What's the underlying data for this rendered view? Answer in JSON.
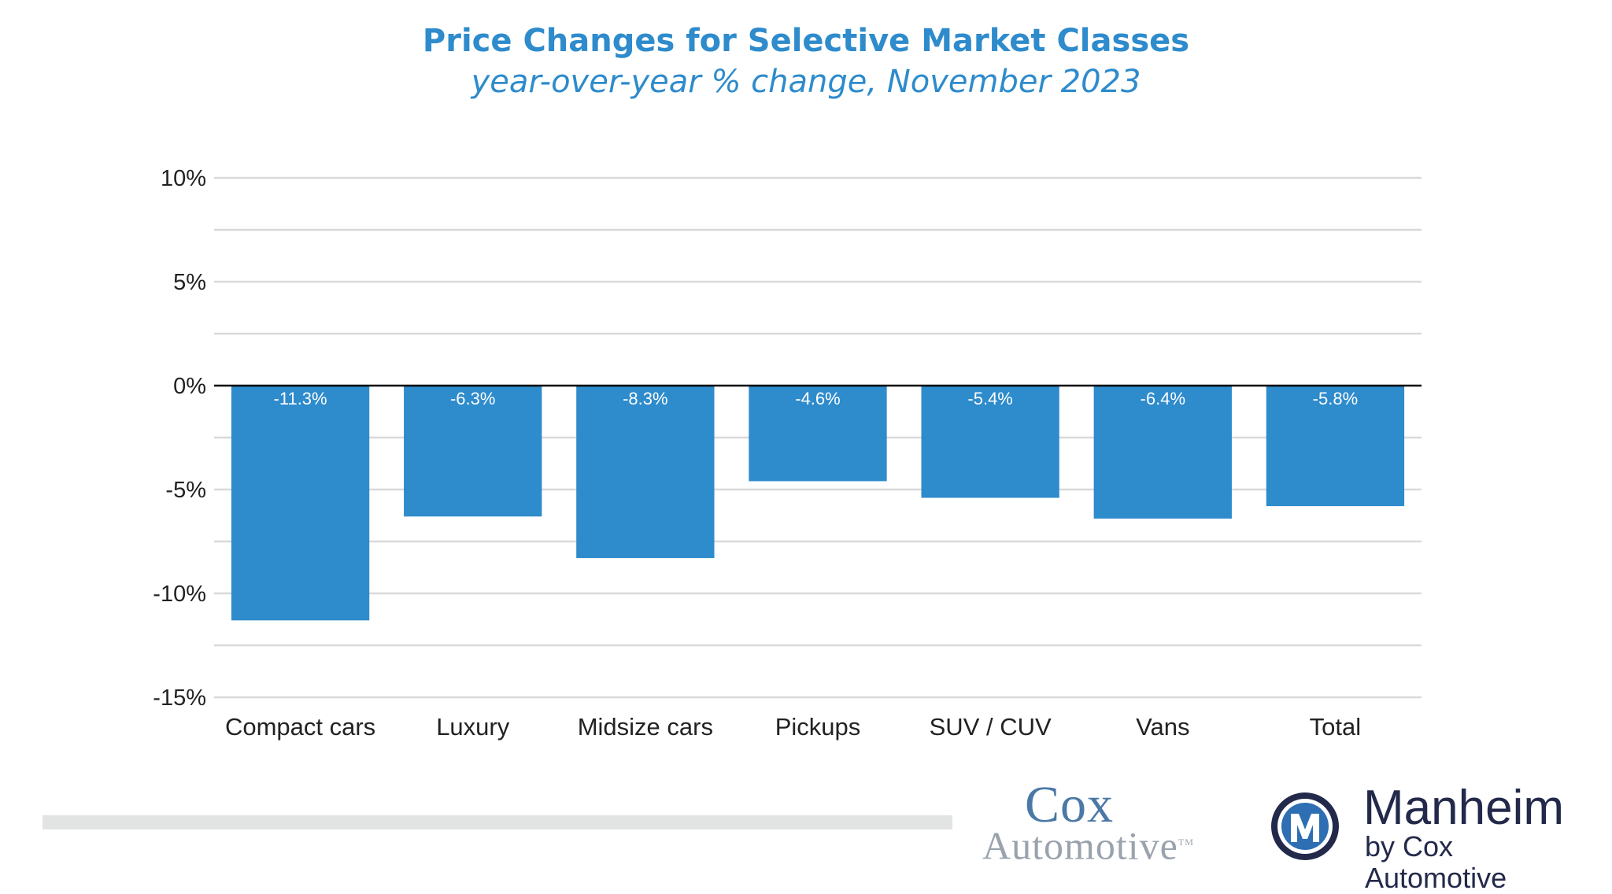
{
  "chart_data": {
    "type": "bar",
    "title": "Price Changes for Selective Market Classes",
    "subtitle": "year-over-year % change, November 2023",
    "categories": [
      "Compact cars",
      "Luxury",
      "Midsize cars",
      "Pickups",
      "SUV / CUV",
      "Vans",
      "Total"
    ],
    "values": [
      -11.3,
      -6.3,
      -8.3,
      -4.6,
      -5.4,
      -6.4,
      -5.8
    ],
    "data_labels": [
      "-11.3%",
      "-6.3%",
      "-8.3%",
      "-4.6%",
      "-5.4%",
      "-6.4%",
      "-5.8%"
    ],
    "y_ticks": [
      10,
      5,
      0,
      -5,
      -10,
      -15
    ],
    "y_tick_labels": [
      "10%",
      "5%",
      "0%",
      "-5%",
      "-10%",
      "-15%"
    ],
    "minor_gridlines": [
      7.5,
      2.5,
      -2.5,
      -7.5,
      -12.5
    ],
    "ylim": [
      -15,
      10
    ],
    "xlabel": "",
    "ylabel": "",
    "grid": true,
    "legend": "none",
    "bar_color": "#2e8bcc",
    "gridline_color": "#d9d9d9",
    "zero_line_color": "#000000"
  },
  "branding": {
    "cox_line1": "Cox",
    "cox_line2": "Automotive",
    "cox_tm": "TM",
    "manheim_name": "Manheim",
    "manheim_sub": "by Cox Automotive",
    "manheim_color": "#23294a",
    "cox_color": "#4b78a6"
  }
}
